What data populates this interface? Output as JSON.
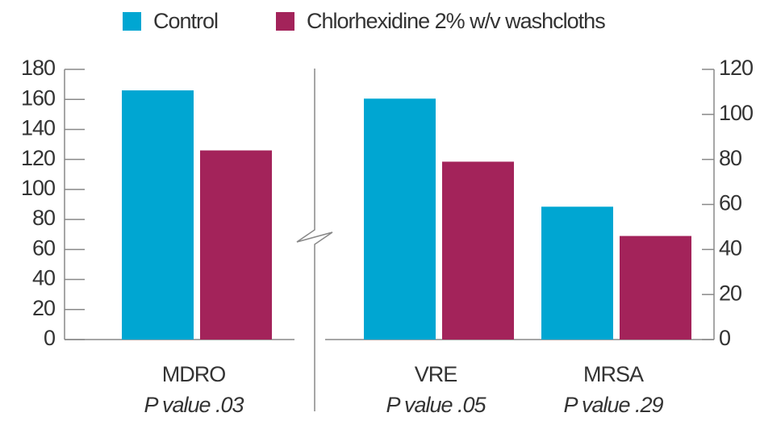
{
  "chart_data": {
    "type": "bar",
    "categories": [
      "MDRO",
      "VRE",
      "MRSA"
    ],
    "annotations": [
      "P value .03",
      "P value .05",
      "P value .29"
    ],
    "category_axis": [
      "y",
      "y2",
      "y2"
    ],
    "series": [
      {
        "name": "Control",
        "color": "#00a6d2",
        "values": [
          166,
          107,
          59
        ]
      },
      {
        "name": "Chlorhexidine 2% w/v washcloths",
        "color": "#a3235a",
        "values": [
          126,
          79,
          46
        ]
      }
    ],
    "ylim": [
      0,
      180
    ],
    "yticks": [
      0,
      20,
      40,
      60,
      80,
      100,
      120,
      140,
      160,
      180
    ],
    "y2lim": [
      0,
      120
    ],
    "y2ticks": [
      0,
      20,
      40,
      60,
      80,
      100,
      120
    ],
    "legend": "top"
  }
}
